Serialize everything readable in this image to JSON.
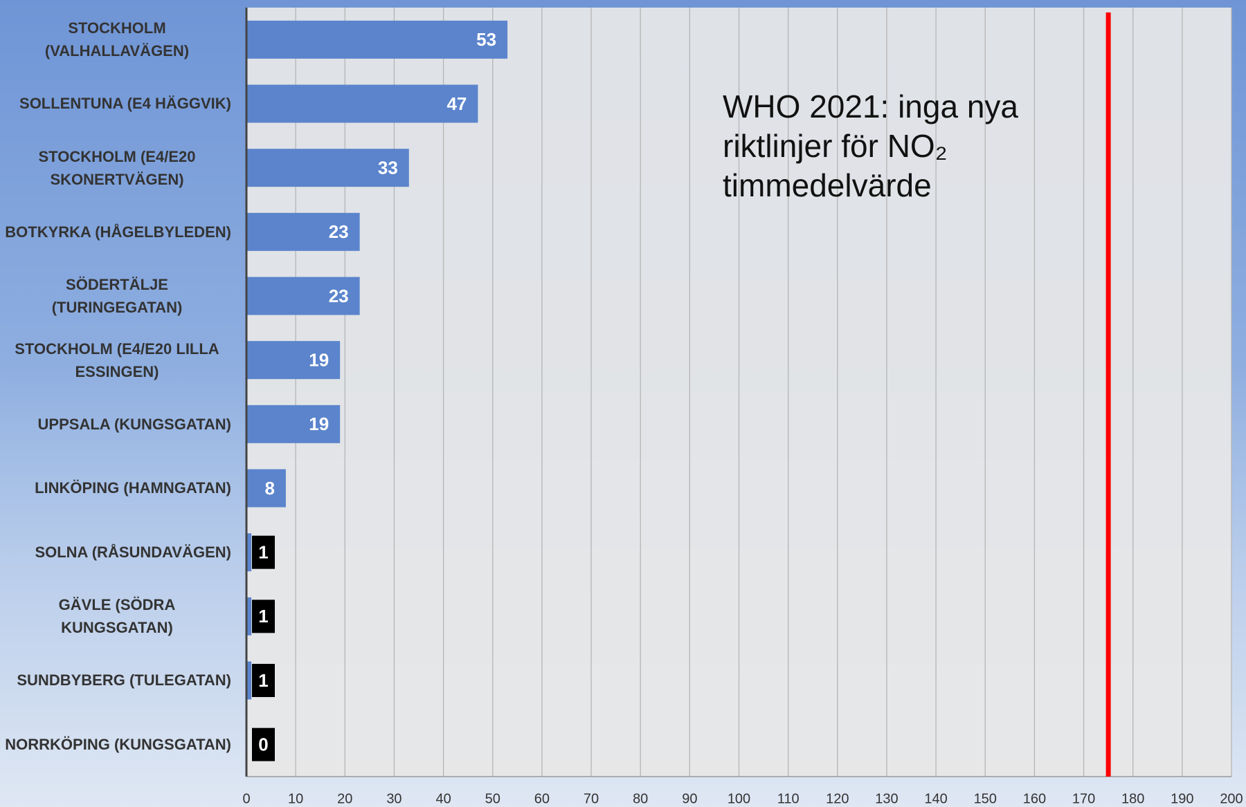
{
  "chart_data": {
    "type": "bar",
    "orientation": "horizontal",
    "categories": [
      "STOCKHOLM (VALHALLAVÄGEN)",
      "SOLLENTUNA (E4 HÄGGVIK)",
      "STOCKHOLM (E4/E20 SKONERTVÄGEN)",
      "BOTKYRKA (HÅGELBYLEDEN)",
      "SÖDERTÄLJE (TURINGEGATAN)",
      "STOCKHOLM (E4/E20 LILLA ESSINGEN)",
      "UPPSALA (KUNGSGATAN)",
      "LINKÖPING (HAMNGATAN)",
      "SOLNA (RÅSUNDAVÄGEN)",
      "GÄVLE (SÖDRA KUNGSGATAN)",
      "SUNDBYBERG (TULEGATAN)",
      "NORRKÖPING (KUNGSGATAN)"
    ],
    "values": [
      53,
      47,
      33,
      23,
      23,
      19,
      19,
      8,
      1,
      1,
      1,
      0
    ],
    "color": "#5b84cc",
    "xlim": [
      0,
      200
    ],
    "xticks": [
      0,
      10,
      20,
      30,
      40,
      50,
      60,
      70,
      80,
      90,
      100,
      110,
      120,
      130,
      140,
      150,
      160,
      170,
      180,
      190,
      200
    ],
    "grid": true,
    "reference_line": {
      "value": 175,
      "color": "#ff0000"
    },
    "annotation": "WHO 2021: inga nya riktlinjer för NO₂ timmedelvärde"
  }
}
